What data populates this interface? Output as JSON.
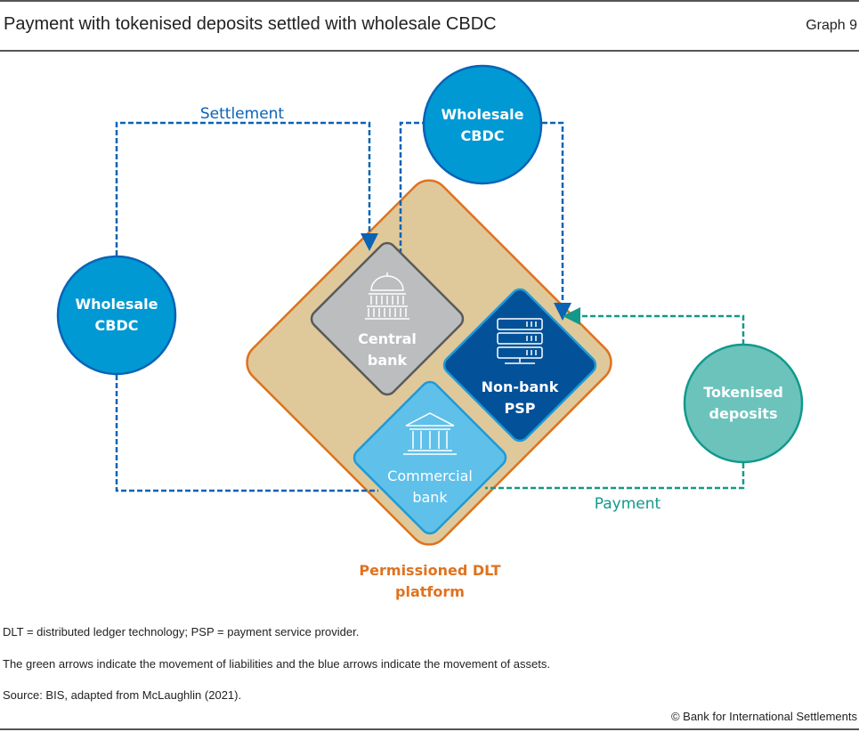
{
  "header": {
    "title": "Payment with tokenised deposits settled with wholesale CBDC",
    "graph_number": "Graph 9"
  },
  "diagram": {
    "platform": {
      "line1": "Permissioned DLT",
      "line2": "platform"
    },
    "central_bank": {
      "line1": "Central",
      "line2": "bank",
      "icon": "capitol-building-icon"
    },
    "non_bank_psp": {
      "line1": "Non-bank",
      "line2": "PSP",
      "icon": "server-rack-icon"
    },
    "commercial_bank": {
      "line1": "Commercial",
      "line2": "bank",
      "icon": "bank-building-icon"
    },
    "wholesale_cbdc_top": {
      "line1": "Wholesale",
      "line2": "CBDC"
    },
    "wholesale_cbdc_left": {
      "line1": "Wholesale",
      "line2": "CBDC"
    },
    "tokenised_deposits": {
      "line1": "Tokenised",
      "line2": "deposits"
    },
    "settlement_label": "Settlement",
    "payment_label": "Payment",
    "colors": {
      "asset_arrow": "#0a63b5",
      "liability_arrow": "#12998a",
      "platform_fill": "#dfc99a",
      "platform_border": "#e0721f",
      "cbdc": "#0099d4",
      "tokenised": "#6cc3bc",
      "central_bank": "#bcbdbf",
      "non_bank": "#035199",
      "commercial": "#5fc0ea"
    }
  },
  "notes": [
    "DLT = distributed ledger technology; PSP = payment service provider.",
    "The green arrows indicate the movement of liabilities and the blue arrows indicate the movement of assets.",
    "Source: BIS, adapted from McLaughlin (2021)."
  ],
  "copyright": "© Bank for International Settlements"
}
